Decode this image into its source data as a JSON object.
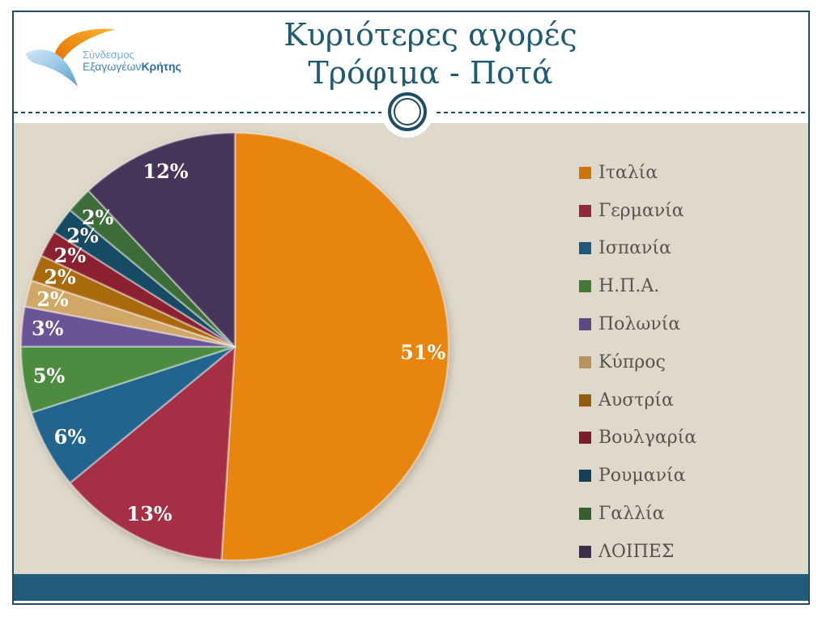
{
  "slide": {
    "title_line1": "Κυριότερες αγορές",
    "title_line2": "Τρόφιμα - Ποτά"
  },
  "logo": {
    "line1": "Σύνδεσμος",
    "line2_part1": "Εξαγωγέων",
    "line2_part2": "Κρήτης"
  },
  "chart_data": {
    "type": "pie",
    "title": "Κυριότερες αγορές Τρόφιμα - Ποτά",
    "legend_position": "right",
    "start_angle_deg": 0,
    "direction": "clockwise",
    "categories": [
      "Ιταλία",
      "Γερμανία",
      "Ισπανία",
      "Η.Π.Α.",
      "Πολωνία",
      "Κύπρος",
      "Αυστρία",
      "Βουλγαρία",
      "Ρουμανία",
      "Γαλλία",
      "ΛΟΙΠΕΣ"
    ],
    "values": [
      51,
      13,
      6,
      5,
      3,
      2,
      2,
      2,
      2,
      2,
      12
    ],
    "labels": [
      "51%",
      "13%",
      "6%",
      "5%",
      "3%",
      "2%",
      "2%",
      "2%",
      "2%",
      "2%",
      "12%"
    ],
    "colors": [
      "#E8850F",
      "#A52F44",
      "#23648E",
      "#4D8B40",
      "#6A5495",
      "#D1A768",
      "#AA690C",
      "#8B2130",
      "#174A63",
      "#3C6C37",
      "#463459"
    ]
  },
  "colors": {
    "title_text": "#1F5A73",
    "frame_border": "#1D4E63",
    "content_background": "#DFD9CC",
    "footer_bar": "#215C7D",
    "legend_text": "#57534E",
    "pie_label_text": "#FFFFFF"
  }
}
